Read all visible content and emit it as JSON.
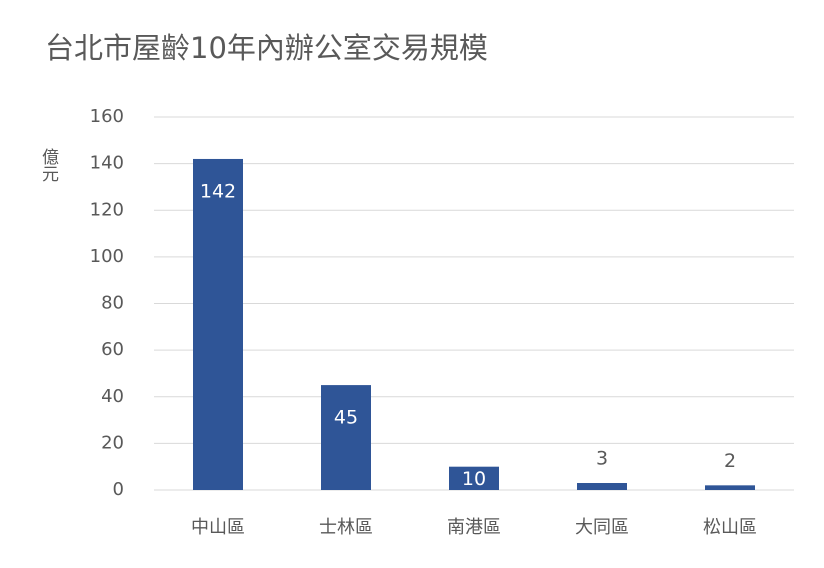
{
  "chart_data": {
    "type": "bar",
    "title": "台北市屋齡10年內辦公室交易規模",
    "y_label": "億元",
    "categories": [
      "中山區",
      "士林區",
      "南港區",
      "大同區",
      "松山區"
    ],
    "values": [
      142,
      45,
      10,
      3,
      2
    ],
    "color": "#2f5597",
    "ylim": [
      0,
      160
    ],
    "yticks": [
      0,
      20,
      40,
      60,
      80,
      100,
      120,
      140,
      160
    ],
    "grid": true
  }
}
